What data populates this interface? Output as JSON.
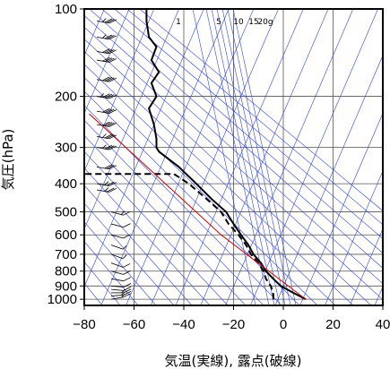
{
  "chart_data": {
    "type": "line",
    "title": "",
    "xlabel": "気温(実線), 露点(破線)",
    "ylabel": "気圧(hPa)",
    "xlim": [
      -80,
      40
    ],
    "ylim": [
      1050,
      100
    ],
    "yscale": "log",
    "x_ticks": [
      -80,
      -60,
      -40,
      -20,
      0,
      20,
      40
    ],
    "x_tick_labels": [
      "−80",
      "−60",
      "−40",
      "−20",
      "0",
      "20",
      "40"
    ],
    "y_ticks": [
      100,
      200,
      300,
      400,
      500,
      600,
      700,
      800,
      900,
      1000
    ],
    "y_tick_labels": [
      "100",
      "200",
      "300",
      "400",
      "500",
      "600",
      "700",
      "800",
      "900",
      "1000"
    ],
    "mixing_ratio_labels": [
      "1",
      "5",
      "10",
      "15",
      "20g"
    ],
    "grid": true,
    "series": [
      {
        "style": "solid",
        "color": "#000000",
        "points": [
          {
            "x": 9,
            "p": 1000
          },
          {
            "x": 4,
            "p": 950
          },
          {
            "x": -1,
            "p": 900
          },
          {
            "x": -4,
            "p": 850
          },
          {
            "x": -7,
            "p": 800
          },
          {
            "x": -9,
            "p": 750
          },
          {
            "x": -12,
            "p": 700
          },
          {
            "x": -14,
            "p": 650
          },
          {
            "x": -17,
            "p": 600
          },
          {
            "x": -20,
            "p": 550
          },
          {
            "x": -23,
            "p": 500
          },
          {
            "x": -29,
            "p": 450
          },
          {
            "x": -35,
            "p": 400
          },
          {
            "x": -42,
            "p": 350
          },
          {
            "x": -50,
            "p": 310
          },
          {
            "x": -51,
            "p": 300
          },
          {
            "x": -51,
            "p": 280
          },
          {
            "x": -52,
            "p": 250
          },
          {
            "x": -54,
            "p": 220
          },
          {
            "x": -51,
            "p": 200
          },
          {
            "x": -53,
            "p": 180
          },
          {
            "x": -50,
            "p": 165
          },
          {
            "x": -53,
            "p": 150
          },
          {
            "x": -51,
            "p": 135
          },
          {
            "x": -54,
            "p": 125
          },
          {
            "x": -55,
            "p": 110
          },
          {
            "x": -55,
            "p": 100
          }
        ]
      },
      {
        "style": "dashed",
        "color": "#000000",
        "points": [
          {
            "x": -4,
            "p": 1000
          },
          {
            "x": -4,
            "p": 960
          },
          {
            "x": -5,
            "p": 900
          },
          {
            "x": -7,
            "p": 850
          },
          {
            "x": -8,
            "p": 800
          },
          {
            "x": -10,
            "p": 750
          },
          {
            "x": -13,
            "p": 700
          },
          {
            "x": -15,
            "p": 650
          },
          {
            "x": -18,
            "p": 600
          },
          {
            "x": -22,
            "p": 550
          },
          {
            "x": -25,
            "p": 500
          },
          {
            "x": -31,
            "p": 450
          },
          {
            "x": -38,
            "p": 400
          },
          {
            "x": -44,
            "p": 370
          },
          {
            "x": -80,
            "p": 370
          }
        ]
      },
      {
        "style": "solid",
        "color": "#cc0000",
        "points": [
          {
            "x": 9,
            "p": 1000
          },
          {
            "x": -25,
            "p": 600
          },
          {
            "x": -78,
            "p": 230
          }
        ]
      }
    ],
    "wind_barbs": [
      {
        "p": 1000,
        "dir": 260,
        "kt": 15
      },
      {
        "p": 975,
        "dir": 265,
        "kt": 15
      },
      {
        "p": 950,
        "dir": 270,
        "kt": 15
      },
      {
        "p": 925,
        "dir": 275,
        "kt": 10
      },
      {
        "p": 900,
        "dir": 275,
        "kt": 10
      },
      {
        "p": 850,
        "dir": 280,
        "kt": 10
      },
      {
        "p": 800,
        "dir": 285,
        "kt": 10
      },
      {
        "p": 750,
        "dir": 290,
        "kt": 10
      },
      {
        "p": 700,
        "dir": 290,
        "kt": 5
      },
      {
        "p": 650,
        "dir": 290,
        "kt": 5
      },
      {
        "p": 600,
        "dir": 285,
        "kt": 10
      },
      {
        "p": 550,
        "dir": 285,
        "kt": 10
      },
      {
        "p": 500,
        "dir": 285,
        "kt": 15
      },
      {
        "p": 420,
        "dir": 280,
        "kt": 25
      },
      {
        "p": 400,
        "dir": 280,
        "kt": 25
      },
      {
        "p": 350,
        "dir": 280,
        "kt": 30
      },
      {
        "p": 300,
        "dir": 280,
        "kt": 35
      },
      {
        "p": 275,
        "dir": 280,
        "kt": 35
      },
      {
        "p": 250,
        "dir": 280,
        "kt": 40
      },
      {
        "p": 225,
        "dir": 280,
        "kt": 40
      },
      {
        "p": 200,
        "dir": 280,
        "kt": 45
      },
      {
        "p": 175,
        "dir": 280,
        "kt": 40
      },
      {
        "p": 150,
        "dir": 280,
        "kt": 40
      },
      {
        "p": 140,
        "dir": 280,
        "kt": 40
      },
      {
        "p": 125,
        "dir": 280,
        "kt": 35
      },
      {
        "p": 110,
        "dir": 280,
        "kt": 35
      }
    ]
  }
}
